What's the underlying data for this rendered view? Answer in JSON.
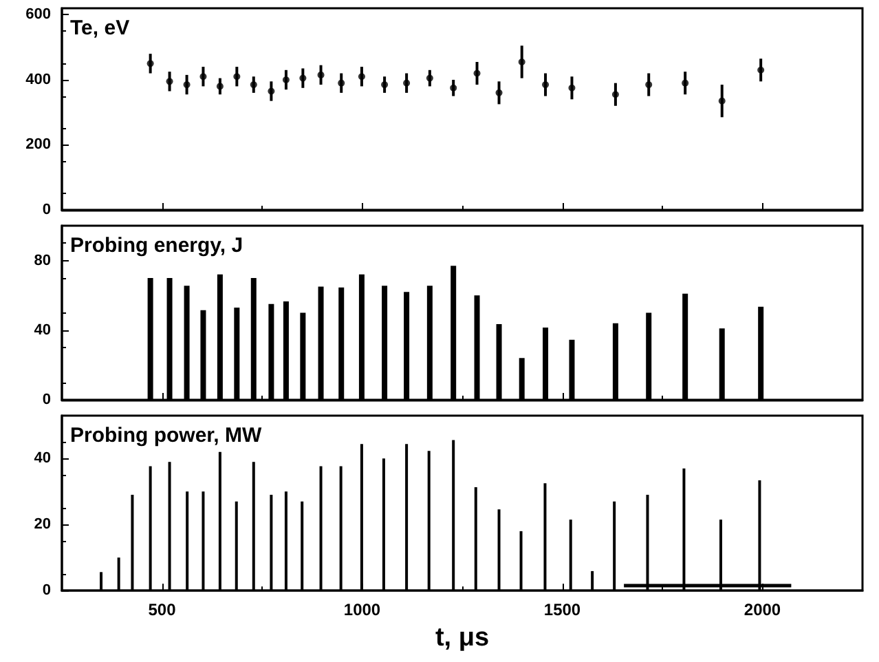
{
  "chart_data": [
    {
      "type": "scatter",
      "title": "Te, eV",
      "x": [
        471,
        519,
        562,
        603,
        645,
        687,
        729,
        773,
        810,
        852,
        897,
        948,
        999,
        1056,
        1111,
        1169,
        1228,
        1287,
        1342,
        1399,
        1458,
        1524,
        1633,
        1716,
        1807,
        1899,
        1996
      ],
      "values": [
        450,
        395,
        385,
        410,
        380,
        410,
        385,
        365,
        400,
        405,
        415,
        390,
        410,
        385,
        390,
        405,
        375,
        420,
        360,
        455,
        385,
        375,
        355,
        385,
        390,
        335,
        430
      ],
      "errors": [
        30,
        30,
        30,
        30,
        25,
        30,
        25,
        30,
        30,
        30,
        30,
        30,
        30,
        25,
        30,
        25,
        25,
        35,
        35,
        50,
        35,
        35,
        35,
        35,
        35,
        50,
        35
      ],
      "color": "#000000",
      "marker": "circle",
      "xlim": [
        250,
        2250
      ],
      "xticks": [
        500,
        1000,
        1500,
        2000
      ],
      "ylim": [
        0,
        620
      ],
      "yticks": [
        0,
        200,
        400,
        600
      ],
      "tick_labels": "y"
    },
    {
      "type": "bar",
      "title": "Probing energy, J",
      "x": [
        471,
        519,
        562,
        603,
        645,
        687,
        729,
        773,
        810,
        852,
        897,
        948,
        999,
        1056,
        1111,
        1169,
        1228,
        1287,
        1342,
        1399,
        1458,
        1524,
        1633,
        1716,
        1807,
        1899,
        1996
      ],
      "values": [
        70,
        70,
        65.5,
        51.5,
        72,
        53,
        70,
        55,
        56.5,
        50,
        65,
        64.5,
        72,
        65.5,
        62,
        65.5,
        77,
        60,
        43.5,
        24,
        41.5,
        34.5,
        44,
        50,
        61,
        41,
        53.5
      ],
      "color": "#000000",
      "xlim": [
        250,
        2250
      ],
      "xticks": [
        500,
        1000,
        1500,
        2000
      ],
      "ylim": [
        0,
        100
      ],
      "yticks": [
        0,
        40,
        80
      ],
      "tick_labels": "y"
    },
    {
      "type": "bar",
      "title": "Probing power, MW",
      "xlabel": "t, μs",
      "xlim": [
        250,
        2250
      ],
      "xticks": [
        500,
        1000,
        1500,
        2000
      ],
      "ylim": [
        0,
        53
      ],
      "yticks": [
        0,
        20,
        40
      ],
      "series": [
        {
          "color": "#000000",
          "x": [
            348,
            392,
            426,
            471,
            519,
            563,
            603,
            645,
            686,
            729,
            773,
            810,
            850,
            897,
            947,
            999,
            1054,
            1111,
            1167,
            1228,
            1284,
            1342,
            1397,
            1457,
            1521,
            1575,
            1630,
            1713,
            1804,
            1896,
            1993
          ],
          "values": [
            5.6,
            10,
            29,
            37.7,
            39,
            30,
            30,
            42,
            27,
            39,
            29,
            30,
            27,
            37.7,
            37.7,
            44.4,
            40,
            44.4,
            42.3,
            45.6,
            31.3,
            24.6,
            18,
            32.5,
            21.5,
            5.9,
            27,
            29,
            37,
            21.5,
            33.4
          ]
        },
        {
          "type": "line",
          "color": "#000000",
          "x": [
            1654,
            2072
          ],
          "values": [
            1.5,
            1.5
          ]
        }
      ]
    }
  ]
}
